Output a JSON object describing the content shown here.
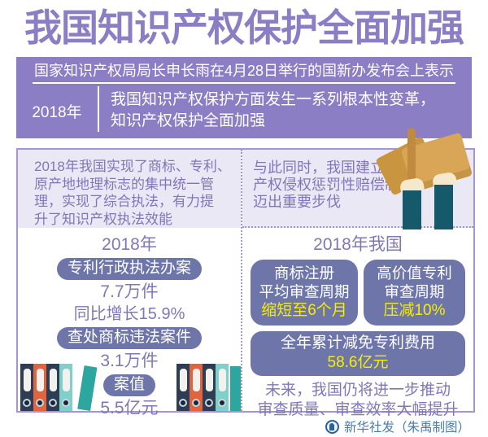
{
  "title": "我国知识产权保护全面加强",
  "banner": {
    "line1": "国家知识产权局局长申长雨在4月28日举行的国新办发布会上表示",
    "year_label": "2018年",
    "statement_lines": [
      "我国知识产权保护方面发生一系列根本性变革，",
      "知识产权保护全面加强"
    ]
  },
  "left_panel": {
    "intro_lines": [
      "2018年我国实现了商标、专利、",
      "原产地地理标志的集中统一管",
      "理，实现了综合执法，有力提",
      "升了知识产权执法效能"
    ],
    "year": "2018年",
    "pill1": "专利行政执法办案",
    "stat1": "7.7万件",
    "stat1_growth": "同比增长15.9%",
    "pill2": "查处商标违法案件",
    "stat2": "3.1万件",
    "pill3": "案值",
    "stat3": "5.5亿元"
  },
  "right_panel": {
    "intro_lines": [
      "与此同时，我国建立知识",
      "产权侵权惩罚性赔偿制度",
      "迈出重要步伐"
    ],
    "year": "2018年我国",
    "card1": {
      "line1": "商标注册",
      "line2": "平均审查周期",
      "highlight": "缩短至6个月"
    },
    "card2": {
      "line1": "高价值专利",
      "line2": "审查周期",
      "highlight": "压减10%"
    },
    "card3": {
      "label": "全年累计减免专利费用",
      "highlight": "58.6亿元"
    },
    "future_lines": [
      "未来，我国仍将进一步推动",
      "审查质量、审查效率大幅提升"
    ]
  },
  "footer": {
    "credit": "新华社发（朱禹制图）"
  },
  "illustrations": {
    "left": "file-binders",
    "right": "hands-holding-folders",
    "footer": "xinhua-globe-logo"
  },
  "colors": {
    "purple": "#8b7ec4",
    "text_purple": "#8077b9",
    "panel_lavender": "#ebe8f5",
    "panel_border": "#a595d2",
    "pill_slate": "#6e76a9",
    "highlight_yellow": "#f6ee00",
    "binder_navy": "#2d3d55",
    "binder_orange": "#e0653f",
    "binder_teal": "#2ca69f",
    "binder_light_teal": "#7fd0cb",
    "arm_teal": "#15596a",
    "folder_tan": "#d8a656",
    "credit_blue": "#4a7cab"
  }
}
